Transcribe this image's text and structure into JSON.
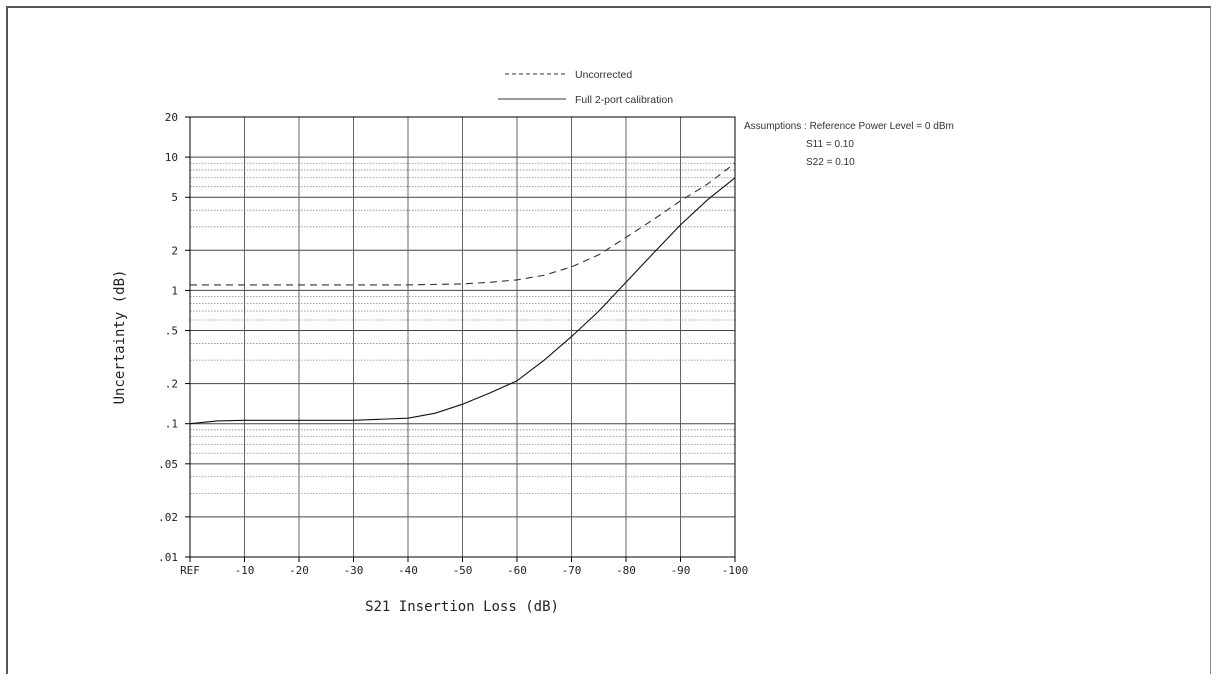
{
  "chart_data": {
    "type": "line",
    "xlabel": "S21 Insertion Loss (dB)",
    "ylabel": "Uncertainty (dB)",
    "y_scale": "log",
    "ylim": [
      0.01,
      20
    ],
    "xlim": [
      0,
      -100
    ],
    "x_tick_labels": [
      "REF",
      "-10",
      "-20",
      "-30",
      "-40",
      "-50",
      "-60",
      "-70",
      "-80",
      "-90",
      "-100"
    ],
    "y_tick_labels": [
      "20",
      "10",
      "5",
      "2",
      "1",
      ".5",
      ".2",
      ".1",
      ".05",
      ".02",
      ".01"
    ],
    "grid": true,
    "legend_position": "top",
    "series": [
      {
        "name": "Uncorrected",
        "style": "dashed",
        "color": "#333333",
        "x": [
          0,
          -10,
          -20,
          -30,
          -40,
          -50,
          -55,
          -60,
          -65,
          -70,
          -75,
          -80,
          -85,
          -90,
          -95,
          -100
        ],
        "values": [
          1.1,
          1.1,
          1.1,
          1.1,
          1.1,
          1.12,
          1.15,
          1.2,
          1.3,
          1.5,
          1.85,
          2.5,
          3.4,
          4.7,
          6.3,
          9.0
        ]
      },
      {
        "name": "Full 2-port calibration",
        "style": "solid",
        "color": "#111111",
        "x": [
          0,
          -5,
          -10,
          -20,
          -30,
          -40,
          -45,
          -50,
          -55,
          -60,
          -65,
          -70,
          -75,
          -80,
          -85,
          -90,
          -95,
          -100
        ],
        "values": [
          0.1,
          0.105,
          0.106,
          0.106,
          0.106,
          0.11,
          0.12,
          0.14,
          0.17,
          0.21,
          0.3,
          0.45,
          0.7,
          1.15,
          1.9,
          3.1,
          4.8,
          7.0
        ]
      }
    ],
    "annotation": {
      "title": "Assumptions : Reference Power Level = 0 dBm",
      "lines": [
        "S11 = 0.10",
        "S22 = 0.10"
      ]
    }
  }
}
